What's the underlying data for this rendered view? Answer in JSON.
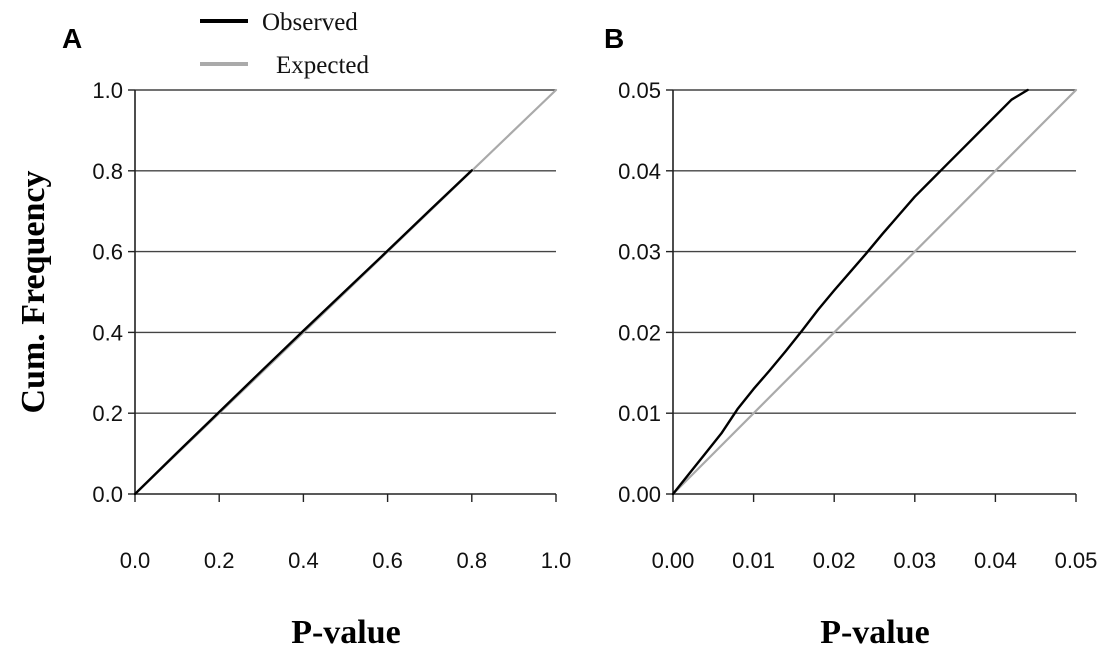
{
  "legend": {
    "entries": [
      {
        "label": "Observed",
        "color": "#000000"
      },
      {
        "label": "Expected",
        "color": "#aaaaaa"
      }
    ]
  },
  "chart_data": [
    {
      "panel": "A",
      "type": "line",
      "xlabel": "P-value",
      "ylabel": "Cum. Frequency",
      "xlim": [
        0,
        1
      ],
      "ylim": [
        0,
        1
      ],
      "xticks": [
        "0.0",
        "0.2",
        "0.4",
        "0.6",
        "0.8",
        "1.0"
      ],
      "yticks": [
        "0.0",
        "0.2",
        "0.4",
        "0.6",
        "0.8",
        "1.0"
      ],
      "grid": "horizontal",
      "series": [
        {
          "name": "Observed",
          "color": "#000000",
          "x": [
            0,
            0.1,
            0.2,
            0.3,
            0.4,
            0.5,
            0.6,
            0.7,
            0.8
          ],
          "y": [
            0,
            0.102,
            0.203,
            0.304,
            0.404,
            0.503,
            0.602,
            0.702,
            0.801
          ]
        },
        {
          "name": "Expected",
          "color": "#aaaaaa",
          "x": [
            0,
            1
          ],
          "y": [
            0,
            1
          ]
        }
      ]
    },
    {
      "panel": "B",
      "type": "line",
      "xlabel": "P-value",
      "ylabel": "",
      "xlim": [
        0,
        0.05
      ],
      "ylim": [
        0,
        0.05
      ],
      "xticks": [
        "0.00",
        "0.01",
        "0.02",
        "0.03",
        "0.04",
        "0.05"
      ],
      "yticks": [
        "0.00",
        "0.01",
        "0.02",
        "0.03",
        "0.04",
        "0.05"
      ],
      "grid": "horizontal",
      "series": [
        {
          "name": "Observed",
          "color": "#000000",
          "x": [
            0,
            0.002,
            0.004,
            0.006,
            0.008,
            0.01,
            0.012,
            0.014,
            0.016,
            0.018,
            0.02,
            0.022,
            0.024,
            0.026,
            0.028,
            0.03,
            0.032,
            0.034,
            0.036,
            0.038,
            0.04,
            0.042,
            0.044
          ],
          "y": [
            0,
            0.0025,
            0.005,
            0.0075,
            0.0105,
            0.013,
            0.0153,
            0.0177,
            0.0202,
            0.0228,
            0.0252,
            0.0275,
            0.0298,
            0.0322,
            0.0345,
            0.0368,
            0.0388,
            0.0408,
            0.0428,
            0.0448,
            0.0468,
            0.0488,
            0.05
          ]
        },
        {
          "name": "Expected",
          "color": "#aaaaaa",
          "x": [
            0,
            0.05
          ],
          "y": [
            0,
            0.05
          ]
        }
      ]
    }
  ]
}
